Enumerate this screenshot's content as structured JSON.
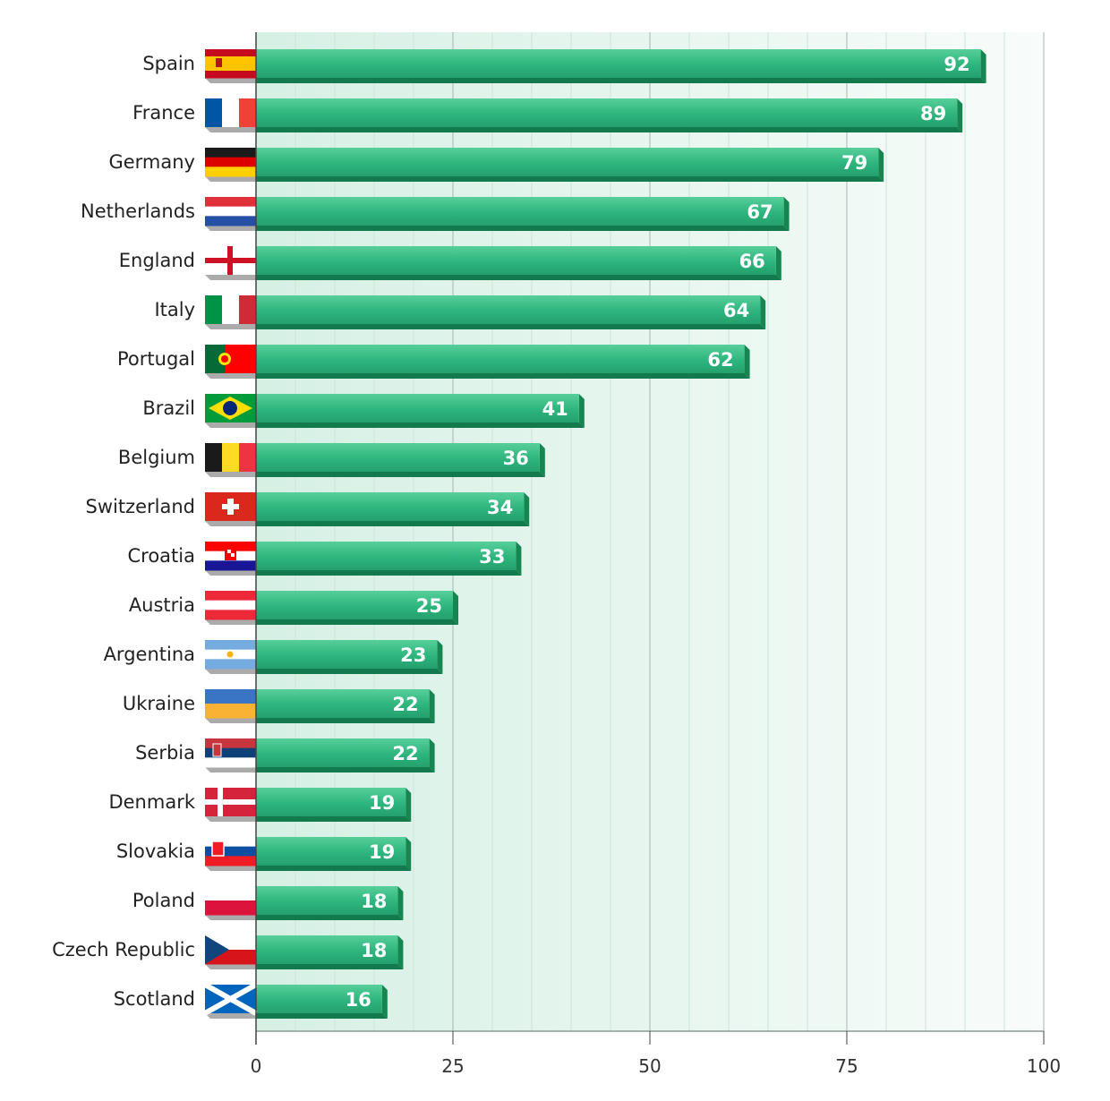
{
  "chart_data": {
    "type": "bar",
    "orientation": "horizontal",
    "title": "",
    "xlabel": "",
    "ylabel": "",
    "xlim": [
      0,
      100
    ],
    "xticks": [
      "0",
      "25",
      "50",
      "75",
      "100"
    ],
    "grid": true,
    "legend": "none",
    "bar_color": "#2db57d",
    "categories": [
      "Spain",
      "France",
      "Germany",
      "Netherlands",
      "England",
      "Italy",
      "Portugal",
      "Brazil",
      "Belgium",
      "Switzerland",
      "Croatia",
      "Austria",
      "Argentina",
      "Ukraine",
      "Serbia",
      "Denmark",
      "Slovakia",
      "Poland",
      "Czech Republic",
      "Scotland"
    ],
    "values": [
      92,
      89,
      79,
      67,
      66,
      64,
      62,
      41,
      36,
      34,
      33,
      25,
      23,
      22,
      22,
      19,
      19,
      18,
      18,
      16
    ],
    "flag_icons": [
      "spain-flag-icon",
      "france-flag-icon",
      "germany-flag-icon",
      "netherlands-flag-icon",
      "england-flag-icon",
      "italy-flag-icon",
      "portugal-flag-icon",
      "brazil-flag-icon",
      "belgium-flag-icon",
      "switzerland-flag-icon",
      "croatia-flag-icon",
      "austria-flag-icon",
      "argentina-flag-icon",
      "ukraine-flag-icon",
      "serbia-flag-icon",
      "denmark-flag-icon",
      "slovakia-flag-icon",
      "poland-flag-icon",
      "czech-republic-flag-icon",
      "scotland-flag-icon"
    ]
  }
}
